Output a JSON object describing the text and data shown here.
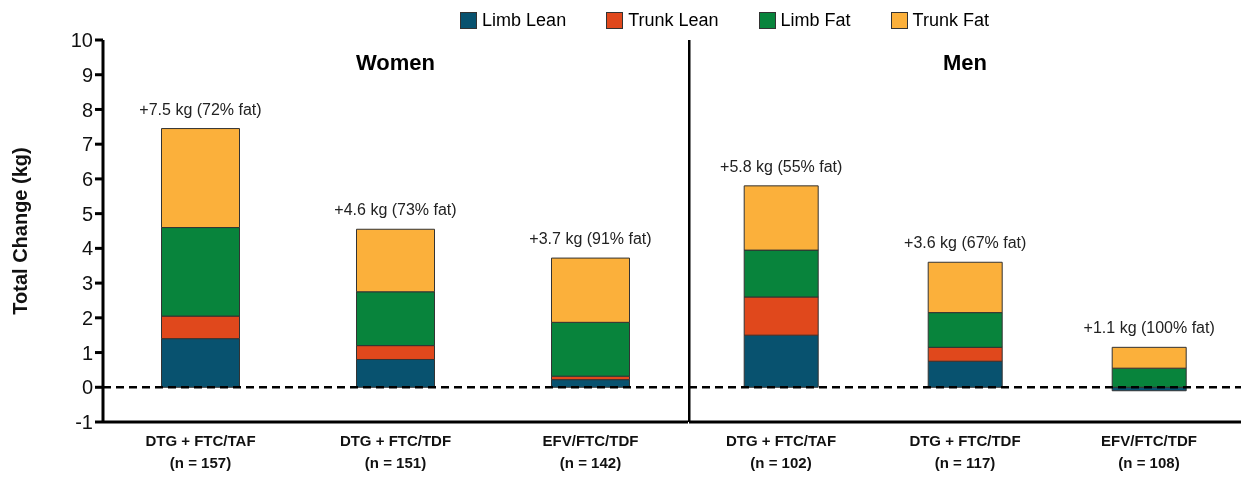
{
  "chart_data": [
    {
      "type": "bar",
      "title": "Women",
      "ylabel": "Total Change (kg)",
      "stacked": true,
      "legend": "top",
      "categories": [
        "DTG + FTC/TAF\n(n = 157)",
        "DTG + FTC/TDF\n(n = 151)",
        "EFV/FTC/TDF\n(n = 142)"
      ],
      "series": [
        {
          "name": "Limb Lean",
          "color": "#08526f",
          "values": [
            1.4,
            0.8,
            0.22
          ]
        },
        {
          "name": "Trunk Lean",
          "color": "#e0481c",
          "values": [
            0.65,
            0.4,
            0.1
          ]
        },
        {
          "name": "Limb Fat",
          "color": "#08843c",
          "values": [
            2.55,
            1.55,
            1.55
          ]
        },
        {
          "name": "Trunk Fat",
          "color": "#fbb03b",
          "values": [
            2.85,
            1.8,
            1.85
          ]
        }
      ],
      "totals": [
        "+7.5 kg (72% fat)",
        "+4.6 kg (73% fat)",
        "+3.7 kg (91% fat)"
      ],
      "ylim": [
        -1,
        10
      ],
      "yticks": [
        -1,
        0,
        1,
        2,
        3,
        4,
        5,
        6,
        7,
        8,
        9,
        10
      ],
      "grid": false,
      "ref_lines": [
        {
          "axis": "y",
          "value": 0,
          "line_style": "dashed",
          "color": "#000000"
        }
      ]
    },
    {
      "type": "bar",
      "title": "Men",
      "stacked": true,
      "tick_labels": "x",
      "categories": [
        "DTG + FTC/TAF\n(n = 102)",
        "DTG + FTC/TDF\n(n = 117)",
        "EFV/FTC/TDF\n(n = 108)"
      ],
      "series": [
        {
          "color": "#08526f",
          "values": [
            1.5,
            0.75,
            -0.1
          ]
        },
        {
          "color": "#e0481c",
          "values": [
            1.1,
            0.4,
            0
          ]
        },
        {
          "color": "#08843c",
          "values": [
            1.35,
            1.0,
            0.55
          ]
        },
        {
          "color": "#fbb03b",
          "values": [
            1.85,
            1.45,
            0.6
          ]
        }
      ],
      "totals": [
        "+5.8 kg (55% fat)",
        "+3.6 kg (67% fat)",
        "+1.1 kg (100% fat)"
      ],
      "ylim": [
        -1,
        10
      ],
      "yticks": [
        -1,
        0,
        1,
        2,
        3,
        4,
        5,
        6,
        7,
        8,
        9,
        10
      ],
      "grid": false,
      "ref_lines": [
        {
          "axis": "y",
          "value": 0,
          "line_style": "dashed",
          "color": "#000000"
        }
      ]
    }
  ]
}
